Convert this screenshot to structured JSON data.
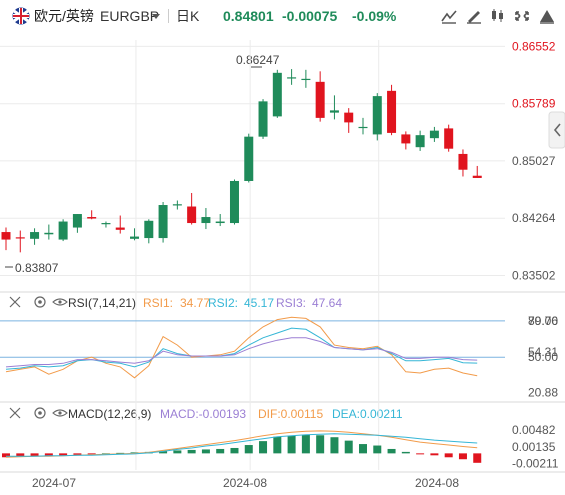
{
  "header": {
    "pair_label": "欧元/英镑",
    "symbol": "EURGBP",
    "interval": "日K",
    "price": "0.84801",
    "change": "-0.00075",
    "change_pct": "-0.09%"
  },
  "colors": {
    "up": "#1f8b5a",
    "down": "#e0141e",
    "price_green": "#1f8b5a",
    "change_green": "#1f8b5a",
    "axis_text": "#555555",
    "red_axis_text": "#e0141e",
    "grid": "#ebebeb",
    "rsi1": "#f29b4a",
    "rsi2": "#35b6d6",
    "rsi3": "#9b7fd4",
    "hline": "#7bb3e0",
    "macd_up": "#1f8b5a",
    "macd_down": "#e0141e",
    "dif": "#f29b4a",
    "dea": "#35b6d6"
  },
  "icons": [
    "flag-gb-icon",
    "dropdown-caret-icon",
    "compare-icon",
    "draw-line-icon",
    "chart-type-icon",
    "settings-icon",
    "fullscreen-icon",
    "sidebar-toggle-icon",
    "close-x-icon",
    "eye-icon",
    "gear-icon"
  ],
  "chart_data": [
    {
      "type": "candlestick",
      "title": "",
      "y_ticks": [
        0.86552,
        0.85789,
        0.85027,
        0.84264,
        0.83502
      ],
      "ylim": [
        0.83415,
        0.86637
      ],
      "x_ticks": [
        "2024-07",
        "2024-08",
        "2024-08"
      ],
      "annotations": {
        "high_label": "0.86247",
        "low_label": "0.83807"
      },
      "candles": [
        {
          "o": 0.8408,
          "h": 0.8414,
          "l": 0.8384,
          "c": 0.8398
        },
        {
          "o": 0.8401,
          "h": 0.841,
          "l": 0.8381,
          "c": 0.84
        },
        {
          "o": 0.8399,
          "h": 0.8413,
          "l": 0.8391,
          "c": 0.8408
        },
        {
          "o": 0.8405,
          "h": 0.8418,
          "l": 0.8398,
          "c": 0.8407
        },
        {
          "o": 0.8398,
          "h": 0.8425,
          "l": 0.8396,
          "c": 0.8422
        },
        {
          "o": 0.8414,
          "h": 0.8432,
          "l": 0.8407,
          "c": 0.8432
        },
        {
          "o": 0.8428,
          "h": 0.8437,
          "l": 0.8425,
          "c": 0.8426
        },
        {
          "o": 0.842,
          "h": 0.8422,
          "l": 0.8414,
          "c": 0.842
        },
        {
          "o": 0.8414,
          "h": 0.843,
          "l": 0.8406,
          "c": 0.8411
        },
        {
          "o": 0.8399,
          "h": 0.8413,
          "l": 0.8397,
          "c": 0.8402
        },
        {
          "o": 0.84,
          "h": 0.8425,
          "l": 0.8393,
          "c": 0.8423
        },
        {
          "o": 0.84,
          "h": 0.8448,
          "l": 0.8394,
          "c": 0.8444
        },
        {
          "o": 0.8444,
          "h": 0.845,
          "l": 0.8438,
          "c": 0.8445
        },
        {
          "o": 0.8442,
          "h": 0.846,
          "l": 0.8418,
          "c": 0.842
        },
        {
          "o": 0.842,
          "h": 0.844,
          "l": 0.8412,
          "c": 0.8428
        },
        {
          "o": 0.842,
          "h": 0.8432,
          "l": 0.8416,
          "c": 0.8422
        },
        {
          "o": 0.842,
          "h": 0.8478,
          "l": 0.8418,
          "c": 0.8476
        },
        {
          "o": 0.8476,
          "h": 0.8539,
          "l": 0.8474,
          "c": 0.8535
        },
        {
          "o": 0.8535,
          "h": 0.8585,
          "l": 0.8532,
          "c": 0.8582
        },
        {
          "o": 0.8562,
          "h": 0.8624,
          "l": 0.856,
          "c": 0.862
        },
        {
          "o": 0.8614,
          "h": 0.8625,
          "l": 0.8604,
          "c": 0.8614
        },
        {
          "o": 0.8612,
          "h": 0.8624,
          "l": 0.86,
          "c": 0.8612
        },
        {
          "o": 0.8608,
          "h": 0.8622,
          "l": 0.8555,
          "c": 0.856
        },
        {
          "o": 0.8567,
          "h": 0.859,
          "l": 0.8558,
          "c": 0.857
        },
        {
          "o": 0.8567,
          "h": 0.8573,
          "l": 0.854,
          "c": 0.8554
        },
        {
          "o": 0.8548,
          "h": 0.856,
          "l": 0.8538,
          "c": 0.8548
        },
        {
          "o": 0.8538,
          "h": 0.8593,
          "l": 0.853,
          "c": 0.8589
        },
        {
          "o": 0.8596,
          "h": 0.8604,
          "l": 0.8537,
          "c": 0.854
        },
        {
          "o": 0.8538,
          "h": 0.8542,
          "l": 0.8518,
          "c": 0.8526
        },
        {
          "o": 0.8521,
          "h": 0.8543,
          "l": 0.8516,
          "c": 0.8537
        },
        {
          "o": 0.8533,
          "h": 0.8548,
          "l": 0.8528,
          "c": 0.8543
        },
        {
          "o": 0.8546,
          "h": 0.8551,
          "l": 0.8515,
          "c": 0.8519
        },
        {
          "o": 0.8512,
          "h": 0.8518,
          "l": 0.8482,
          "c": 0.8491
        },
        {
          "o": 0.8483,
          "h": 0.8496,
          "l": 0.848,
          "c": 0.848
        }
      ]
    },
    {
      "type": "line",
      "title": "RSI",
      "label": "RSI(7,14,21)",
      "series": [
        {
          "name": "RSI1",
          "last": "34.77",
          "values": [
            38,
            40,
            42,
            36,
            40,
            47,
            50,
            45,
            42,
            33,
            43,
            67,
            60,
            50,
            51,
            52,
            55,
            66,
            75,
            81,
            83,
            82,
            75,
            60,
            58,
            57,
            59,
            52,
            38,
            37,
            40,
            41,
            37,
            34.77
          ]
        },
        {
          "name": "RSI2",
          "last": "45.17",
          "values": [
            40,
            41,
            43,
            42,
            43,
            47,
            48,
            46,
            45,
            42,
            46,
            57,
            53,
            51,
            51,
            51,
            53,
            60,
            66,
            70,
            74,
            73,
            66,
            58,
            57,
            56,
            58,
            53,
            47,
            47,
            48,
            49,
            45.5,
            45.17
          ]
        },
        {
          "name": "RSI3",
          "last": "47.64",
          "values": [
            42,
            43,
            44,
            44,
            45,
            48,
            48,
            47,
            46,
            45,
            47,
            55,
            52,
            51,
            51,
            51,
            52,
            57,
            61,
            64,
            66,
            66,
            63,
            58,
            57,
            56,
            57,
            54,
            49,
            49,
            50,
            50,
            48,
            47.64
          ]
        }
      ],
      "y_ticks": [
        "80.00",
        "79.76",
        "54.31",
        "50.00",
        "20.88"
      ],
      "ylim": [
        18,
        84
      ]
    },
    {
      "type": "bar",
      "title": "MACD",
      "label": "MACD(12,26,9)",
      "macd_label": "MACD:-0.00193",
      "dif_label": "DIF:0.00115",
      "dea_label": "DEA:0.00211",
      "histogram": [
        -0.0008,
        -0.0007,
        -0.0006,
        -0.0006,
        -0.0005,
        -0.0003,
        -0.0001,
        0.0,
        0.0001,
        0.0002,
        0.0003,
        0.0005,
        0.0006,
        0.0007,
        0.0008,
        0.0009,
        0.0011,
        0.0017,
        0.0025,
        0.0034,
        0.0036,
        0.0038,
        0.0037,
        0.0033,
        0.0026,
        0.0019,
        0.0016,
        0.0009,
        0.0003,
        -0.0001,
        -0.0004,
        -0.0008,
        -0.0012,
        -0.00193
      ],
      "dif": [
        -0.0008,
        -0.0007,
        -0.0006,
        -0.0006,
        -0.0005,
        -0.0004,
        -0.0003,
        -0.0002,
        -0.0001,
        0.0,
        0.0002,
        0.0006,
        0.001,
        0.0014,
        0.0018,
        0.0022,
        0.0026,
        0.0031,
        0.0036,
        0.004,
        0.0043,
        0.0045,
        0.0046,
        0.0045,
        0.0043,
        0.004,
        0.0037,
        0.0033,
        0.0028,
        0.0023,
        0.002,
        0.0017,
        0.0014,
        0.00115
      ],
      "dea": [
        -0.0006,
        -0.0006,
        -0.0006,
        -0.0005,
        -0.0005,
        -0.0004,
        -0.0004,
        -0.0003,
        -0.0002,
        -0.0001,
        0.0001,
        0.0004,
        0.0008,
        0.0011,
        0.0015,
        0.0018,
        0.0022,
        0.0026,
        0.003,
        0.0034,
        0.0036,
        0.0038,
        0.0039,
        0.004,
        0.0039,
        0.0038,
        0.0037,
        0.0035,
        0.0033,
        0.003,
        0.0027,
        0.0025,
        0.0023,
        0.00211
      ],
      "y_ticks": [
        "0.00482",
        "0.00135",
        "-0.00211"
      ],
      "ylim": [
        -0.0034,
        0.006
      ]
    }
  ]
}
